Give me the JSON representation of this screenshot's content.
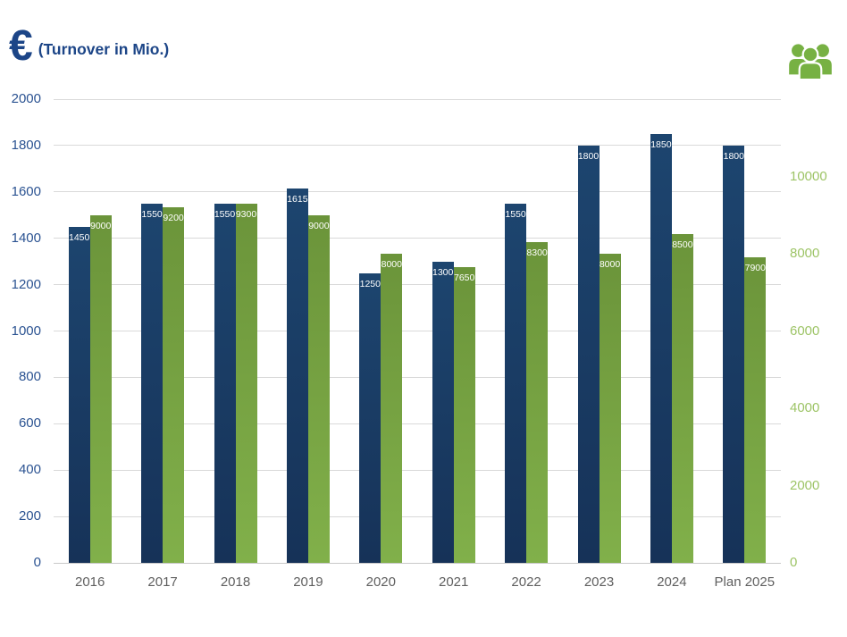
{
  "header": {
    "currency_symbol": "€",
    "title": "(Turnover in Mio.)"
  },
  "icons": {
    "people_icon": "people-group-icon"
  },
  "colors": {
    "title_text": "#1c4587",
    "turnover_bar_top": "#1d456f",
    "turnover_bar_bottom": "#163258",
    "people_bar_top": "#6b943a",
    "people_bar_bottom": "#81b04a",
    "left_axis_text": "#2a5291",
    "right_axis_text": "#9dc466",
    "x_axis_text": "#5f5f5f",
    "gridline": "#d9d9d9",
    "icon_green": "#77b143",
    "bar_label_text": "#ffffff"
  },
  "chart_data": {
    "type": "bar",
    "title": "€ (Turnover in Mio.)",
    "categories": [
      "2016",
      "2017",
      "2018",
      "2019",
      "2020",
      "2021",
      "2022",
      "2023",
      "2024",
      "Plan 2025"
    ],
    "series": [
      {
        "name": "turnover_mio_eur",
        "axis": "left",
        "values": [
          1450,
          1550,
          1550,
          1615,
          1250,
          1300,
          1550,
          1800,
          1850,
          1800
        ]
      },
      {
        "name": "people",
        "axis": "right",
        "values": [
          9000,
          9200,
          9300,
          9000,
          8000,
          7650,
          8300,
          8000,
          8500,
          7900
        ]
      }
    ],
    "left_axis": {
      "min": 0,
      "max": 2000,
      "tick_step": 200,
      "tick_labels": [
        "0",
        "200",
        "400",
        "600",
        "800",
        "1000",
        "1200",
        "1400",
        "1600",
        "1800",
        "2000"
      ]
    },
    "right_axis": {
      "min": 0,
      "max": 12000,
      "tick_step": 2000,
      "tick_labels": [
        "0",
        "2000",
        "4000",
        "6000",
        "8000",
        "10000"
      ]
    },
    "grid": true,
    "data_labels": true,
    "legend": "none"
  }
}
